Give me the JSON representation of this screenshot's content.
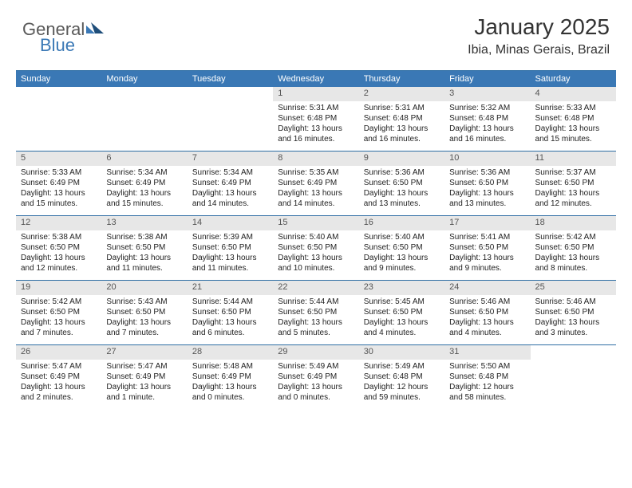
{
  "logo": {
    "text1": "General",
    "text2": "Blue"
  },
  "title": "January 2025",
  "location": "Ibia, Minas Gerais, Brazil",
  "colors": {
    "header_bg": "#3a78b5",
    "header_text": "#ffffff",
    "border": "#2e6da4",
    "daynum_bg": "#e7e7e7",
    "daynum_text": "#555555",
    "body_text": "#222222",
    "title_text": "#333333"
  },
  "dayHeaders": [
    "Sunday",
    "Monday",
    "Tuesday",
    "Wednesday",
    "Thursday",
    "Friday",
    "Saturday"
  ],
  "weeks": [
    [
      null,
      null,
      null,
      {
        "n": "1",
        "sr": "Sunrise: 5:31 AM",
        "ss": "Sunset: 6:48 PM",
        "dl1": "Daylight: 13 hours",
        "dl2": "and 16 minutes."
      },
      {
        "n": "2",
        "sr": "Sunrise: 5:31 AM",
        "ss": "Sunset: 6:48 PM",
        "dl1": "Daylight: 13 hours",
        "dl2": "and 16 minutes."
      },
      {
        "n": "3",
        "sr": "Sunrise: 5:32 AM",
        "ss": "Sunset: 6:48 PM",
        "dl1": "Daylight: 13 hours",
        "dl2": "and 16 minutes."
      },
      {
        "n": "4",
        "sr": "Sunrise: 5:33 AM",
        "ss": "Sunset: 6:48 PM",
        "dl1": "Daylight: 13 hours",
        "dl2": "and 15 minutes."
      }
    ],
    [
      {
        "n": "5",
        "sr": "Sunrise: 5:33 AM",
        "ss": "Sunset: 6:49 PM",
        "dl1": "Daylight: 13 hours",
        "dl2": "and 15 minutes."
      },
      {
        "n": "6",
        "sr": "Sunrise: 5:34 AM",
        "ss": "Sunset: 6:49 PM",
        "dl1": "Daylight: 13 hours",
        "dl2": "and 15 minutes."
      },
      {
        "n": "7",
        "sr": "Sunrise: 5:34 AM",
        "ss": "Sunset: 6:49 PM",
        "dl1": "Daylight: 13 hours",
        "dl2": "and 14 minutes."
      },
      {
        "n": "8",
        "sr": "Sunrise: 5:35 AM",
        "ss": "Sunset: 6:49 PM",
        "dl1": "Daylight: 13 hours",
        "dl2": "and 14 minutes."
      },
      {
        "n": "9",
        "sr": "Sunrise: 5:36 AM",
        "ss": "Sunset: 6:50 PM",
        "dl1": "Daylight: 13 hours",
        "dl2": "and 13 minutes."
      },
      {
        "n": "10",
        "sr": "Sunrise: 5:36 AM",
        "ss": "Sunset: 6:50 PM",
        "dl1": "Daylight: 13 hours",
        "dl2": "and 13 minutes."
      },
      {
        "n": "11",
        "sr": "Sunrise: 5:37 AM",
        "ss": "Sunset: 6:50 PM",
        "dl1": "Daylight: 13 hours",
        "dl2": "and 12 minutes."
      }
    ],
    [
      {
        "n": "12",
        "sr": "Sunrise: 5:38 AM",
        "ss": "Sunset: 6:50 PM",
        "dl1": "Daylight: 13 hours",
        "dl2": "and 12 minutes."
      },
      {
        "n": "13",
        "sr": "Sunrise: 5:38 AM",
        "ss": "Sunset: 6:50 PM",
        "dl1": "Daylight: 13 hours",
        "dl2": "and 11 minutes."
      },
      {
        "n": "14",
        "sr": "Sunrise: 5:39 AM",
        "ss": "Sunset: 6:50 PM",
        "dl1": "Daylight: 13 hours",
        "dl2": "and 11 minutes."
      },
      {
        "n": "15",
        "sr": "Sunrise: 5:40 AM",
        "ss": "Sunset: 6:50 PM",
        "dl1": "Daylight: 13 hours",
        "dl2": "and 10 minutes."
      },
      {
        "n": "16",
        "sr": "Sunrise: 5:40 AM",
        "ss": "Sunset: 6:50 PM",
        "dl1": "Daylight: 13 hours",
        "dl2": "and 9 minutes."
      },
      {
        "n": "17",
        "sr": "Sunrise: 5:41 AM",
        "ss": "Sunset: 6:50 PM",
        "dl1": "Daylight: 13 hours",
        "dl2": "and 9 minutes."
      },
      {
        "n": "18",
        "sr": "Sunrise: 5:42 AM",
        "ss": "Sunset: 6:50 PM",
        "dl1": "Daylight: 13 hours",
        "dl2": "and 8 minutes."
      }
    ],
    [
      {
        "n": "19",
        "sr": "Sunrise: 5:42 AM",
        "ss": "Sunset: 6:50 PM",
        "dl1": "Daylight: 13 hours",
        "dl2": "and 7 minutes."
      },
      {
        "n": "20",
        "sr": "Sunrise: 5:43 AM",
        "ss": "Sunset: 6:50 PM",
        "dl1": "Daylight: 13 hours",
        "dl2": "and 7 minutes."
      },
      {
        "n": "21",
        "sr": "Sunrise: 5:44 AM",
        "ss": "Sunset: 6:50 PM",
        "dl1": "Daylight: 13 hours",
        "dl2": "and 6 minutes."
      },
      {
        "n": "22",
        "sr": "Sunrise: 5:44 AM",
        "ss": "Sunset: 6:50 PM",
        "dl1": "Daylight: 13 hours",
        "dl2": "and 5 minutes."
      },
      {
        "n": "23",
        "sr": "Sunrise: 5:45 AM",
        "ss": "Sunset: 6:50 PM",
        "dl1": "Daylight: 13 hours",
        "dl2": "and 4 minutes."
      },
      {
        "n": "24",
        "sr": "Sunrise: 5:46 AM",
        "ss": "Sunset: 6:50 PM",
        "dl1": "Daylight: 13 hours",
        "dl2": "and 4 minutes."
      },
      {
        "n": "25",
        "sr": "Sunrise: 5:46 AM",
        "ss": "Sunset: 6:50 PM",
        "dl1": "Daylight: 13 hours",
        "dl2": "and 3 minutes."
      }
    ],
    [
      {
        "n": "26",
        "sr": "Sunrise: 5:47 AM",
        "ss": "Sunset: 6:49 PM",
        "dl1": "Daylight: 13 hours",
        "dl2": "and 2 minutes."
      },
      {
        "n": "27",
        "sr": "Sunrise: 5:47 AM",
        "ss": "Sunset: 6:49 PM",
        "dl1": "Daylight: 13 hours",
        "dl2": "and 1 minute."
      },
      {
        "n": "28",
        "sr": "Sunrise: 5:48 AM",
        "ss": "Sunset: 6:49 PM",
        "dl1": "Daylight: 13 hours",
        "dl2": "and 0 minutes."
      },
      {
        "n": "29",
        "sr": "Sunrise: 5:49 AM",
        "ss": "Sunset: 6:49 PM",
        "dl1": "Daylight: 13 hours",
        "dl2": "and 0 minutes."
      },
      {
        "n": "30",
        "sr": "Sunrise: 5:49 AM",
        "ss": "Sunset: 6:48 PM",
        "dl1": "Daylight: 12 hours",
        "dl2": "and 59 minutes."
      },
      {
        "n": "31",
        "sr": "Sunrise: 5:50 AM",
        "ss": "Sunset: 6:48 PM",
        "dl1": "Daylight: 12 hours",
        "dl2": "and 58 minutes."
      },
      null
    ]
  ]
}
